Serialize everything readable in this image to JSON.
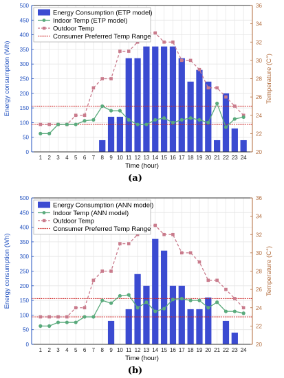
{
  "colors": {
    "bar": "#3b4bd1",
    "indoor": "#5aaa7c",
    "outdoor": "#c97b8c",
    "range": "#cc2222",
    "left_axis": "#1f4fbf",
    "right_axis": "#b06a3a"
  },
  "chart_data": [
    {
      "caption": "(a)",
      "type": "bar+line",
      "xlabel": "Time (hour)",
      "ylabel_left": "Energy consumption (Wh)",
      "ylabel_right": "Temperature (C°)",
      "x": [
        1,
        2,
        3,
        4,
        5,
        6,
        7,
        8,
        9,
        10,
        11,
        12,
        13,
        14,
        15,
        16,
        17,
        18,
        19,
        20,
        21,
        22,
        23,
        24
      ],
      "xticks": [
        "1",
        "2",
        "3",
        "4",
        "5",
        "6",
        "7",
        "8",
        "9",
        "10",
        "11",
        "12",
        "13",
        "14",
        "15",
        "16",
        "17",
        "18",
        "19",
        "20",
        "21",
        "22",
        "23",
        "24"
      ],
      "ylim_left": [
        0,
        500
      ],
      "yticks_left": [
        "0",
        "50",
        "100",
        "150",
        "200",
        "250",
        "300",
        "350",
        "400",
        "450",
        "500"
      ],
      "ylim_right": [
        20,
        36
      ],
      "yticks_right": [
        "20",
        "22",
        "24",
        "26",
        "28",
        "30",
        "32",
        "34",
        "36"
      ],
      "legend": [
        "Energy Consumption (ETP model)",
        "Indoor Temp (ETP model)",
        "Outdoor Temp",
        "Consumer Preferred Temp Range"
      ],
      "series": [
        {
          "name": "Energy Consumption (ETP model)",
          "type": "bar",
          "axis": "left",
          "values": [
            0,
            0,
            0,
            0,
            0,
            0,
            0,
            40,
            120,
            120,
            320,
            320,
            360,
            360,
            360,
            360,
            320,
            240,
            280,
            240,
            40,
            200,
            80,
            40
          ]
        },
        {
          "name": "Indoor Temp (ETP model)",
          "type": "line",
          "axis": "right",
          "values": [
            22,
            22,
            23,
            23,
            23,
            23.4,
            23.5,
            25,
            24.5,
            24.5,
            23.5,
            23,
            23,
            23.5,
            23.7,
            23.2,
            23.5,
            23.7,
            23.5,
            23.2,
            25.3,
            22.7,
            23.6,
            23.8
          ]
        },
        {
          "name": "Outdoor Temp",
          "type": "line",
          "axis": "right",
          "values": [
            23,
            23,
            23,
            23,
            24,
            24,
            27,
            28,
            28,
            31,
            31,
            32,
            33,
            33,
            32,
            32,
            30,
            30,
            29,
            27,
            27,
            26,
            25,
            24
          ]
        }
      ],
      "preferred_range": [
        23,
        25
      ]
    },
    {
      "caption": "(b)",
      "type": "bar+line",
      "xlabel": "Time (hour)",
      "ylabel_left": "Energy consumption (Wh)",
      "ylabel_right": "Temperature (C°)",
      "x": [
        1,
        2,
        3,
        4,
        5,
        6,
        7,
        8,
        9,
        10,
        11,
        12,
        13,
        14,
        15,
        16,
        17,
        18,
        19,
        20,
        21,
        22,
        23,
        24
      ],
      "xticks": [
        "1",
        "2",
        "3",
        "4",
        "5",
        "6",
        "7",
        "8",
        "9",
        "10",
        "11",
        "12",
        "13",
        "14",
        "15",
        "16",
        "17",
        "18",
        "19",
        "20",
        "21",
        "22",
        "23",
        "24"
      ],
      "ylim_left": [
        0,
        500
      ],
      "yticks_left": [
        "0",
        "50",
        "100",
        "150",
        "200",
        "250",
        "300",
        "350",
        "400",
        "450",
        "500"
      ],
      "ylim_right": [
        20,
        36
      ],
      "yticks_right": [
        "20",
        "22",
        "24",
        "26",
        "28",
        "30",
        "32",
        "34",
        "36"
      ],
      "legend": [
        "Energy Consumption (ANN model)",
        "Indoor Temp (ANN model)",
        "Outdoor Temp",
        "Consumer Preferred Temp Range"
      ],
      "series": [
        {
          "name": "Energy Consumption (ANN model)",
          "type": "bar",
          "axis": "left",
          "values": [
            0,
            0,
            0,
            0,
            0,
            0,
            0,
            0,
            80,
            0,
            120,
            240,
            200,
            360,
            320,
            200,
            200,
            120,
            120,
            160,
            0,
            80,
            40,
            0
          ]
        },
        {
          "name": "Indoor Temp (ANN model)",
          "type": "line",
          "axis": "right",
          "values": [
            22,
            22,
            22.4,
            22.4,
            22.4,
            23,
            23,
            24.8,
            24.5,
            25.3,
            25.4,
            24,
            24.6,
            23.6,
            23.9,
            24.9,
            25,
            24.8,
            24.8,
            24,
            24.6,
            23.6,
            23.6,
            23.4
          ]
        },
        {
          "name": "Outdoor Temp",
          "type": "line",
          "axis": "right",
          "values": [
            23,
            23,
            23,
            23,
            24,
            24,
            27,
            28,
            28,
            31,
            31,
            32,
            33,
            33,
            32,
            32,
            30,
            30,
            29,
            27,
            27,
            26,
            25,
            24
          ]
        }
      ],
      "preferred_range": [
        23,
        25
      ]
    }
  ]
}
